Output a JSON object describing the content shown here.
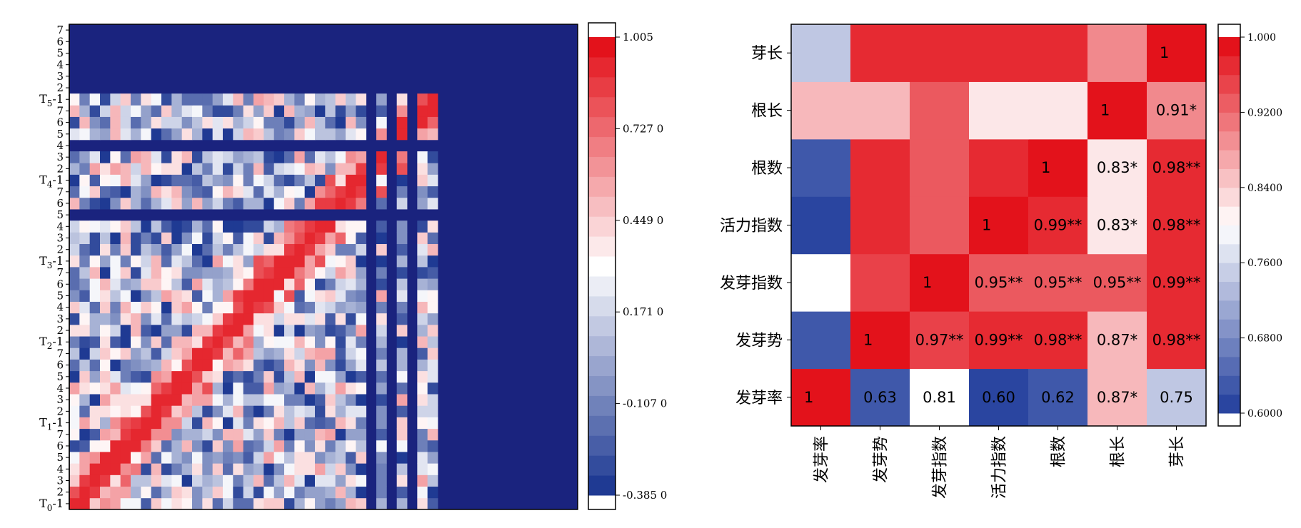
{
  "chart_data": [
    {
      "type": "heatmap",
      "title": "",
      "colorbar": {
        "ticks": [
          "1.005",
          "0.727 0",
          "0.449 0",
          "0.171 0",
          "-0.107 0",
          "-0.385 0"
        ],
        "tick_values": [
          1.005,
          0.727,
          0.449,
          0.171,
          -0.107,
          -0.385
        ],
        "range": [
          -0.385,
          1.005
        ],
        "bands": 23
      },
      "y_groups": [
        {
          "label": "T",
          "sub": "0",
          "suffix": "-1",
          "ticks": [
            "2",
            "3",
            "4",
            "5",
            "6",
            "7"
          ]
        },
        {
          "label": "T",
          "sub": "1",
          "suffix": "-1",
          "ticks": [
            "2",
            "3",
            "4",
            "5",
            "6",
            "7"
          ]
        },
        {
          "label": "T",
          "sub": "2",
          "suffix": "-1",
          "ticks": [
            "2",
            "3",
            "4",
            "5",
            "6",
            "7"
          ]
        },
        {
          "label": "T",
          "sub": "3",
          "suffix": "-1",
          "ticks": [
            "2",
            "3",
            "4",
            "5",
            "6",
            "7"
          ]
        },
        {
          "label": "T",
          "sub": "4",
          "suffix": "-1",
          "ticks": [
            "2",
            "3",
            "4",
            "5",
            "6",
            "7"
          ]
        },
        {
          "label": "T",
          "sub": "5",
          "suffix": "-1",
          "ticks": [
            "2",
            "3",
            "4",
            "5",
            "6",
            "7"
          ]
        }
      ],
      "grid_size": 42,
      "colors": {
        "low": "#1f3a93",
        "mid": "#ffffff",
        "high": "#e3121b",
        "empty": "#1a237e"
      }
    },
    {
      "type": "heatmap",
      "title": "",
      "x_categories": [
        "发芽率",
        "发芽势",
        "发芽指数",
        "活力指数",
        "根数",
        "根长",
        "芽长"
      ],
      "y_categories": [
        "发芽率",
        "发芽势",
        "发芽指数",
        "活力指数",
        "根数",
        "根长",
        "芽长"
      ],
      "cells": [
        {
          "row": "发芽率",
          "col": "发芽率",
          "value": 1,
          "label": "1"
        },
        {
          "row": "发芽率",
          "col": "发芽势",
          "value": 0.63,
          "label": "0.63"
        },
        {
          "row": "发芽率",
          "col": "发芽指数",
          "value": 0.81,
          "label": "0.81"
        },
        {
          "row": "发芽率",
          "col": "活力指数",
          "value": 0.6,
          "label": "0.60"
        },
        {
          "row": "发芽率",
          "col": "根数",
          "value": 0.62,
          "label": "0.62"
        },
        {
          "row": "发芽率",
          "col": "根长",
          "value": 0.87,
          "label": "0.87*"
        },
        {
          "row": "发芽率",
          "col": "芽长",
          "value": 0.75,
          "label": "0.75"
        },
        {
          "row": "发芽势",
          "col": "发芽率",
          "value": 0.63,
          "label": ""
        },
        {
          "row": "发芽势",
          "col": "发芽势",
          "value": 1,
          "label": "1"
        },
        {
          "row": "发芽势",
          "col": "发芽指数",
          "value": 0.97,
          "label": "0.97**"
        },
        {
          "row": "发芽势",
          "col": "活力指数",
          "value": 0.99,
          "label": "0.99**"
        },
        {
          "row": "发芽势",
          "col": "根数",
          "value": 0.98,
          "label": "0.98**"
        },
        {
          "row": "发芽势",
          "col": "根长",
          "value": 0.87,
          "label": "0.87*"
        },
        {
          "row": "发芽势",
          "col": "芽长",
          "value": 0.98,
          "label": "0.98**"
        },
        {
          "row": "发芽指数",
          "col": "发芽率",
          "value": 0.81,
          "label": ""
        },
        {
          "row": "发芽指数",
          "col": "发芽势",
          "value": 0.97,
          "label": ""
        },
        {
          "row": "发芽指数",
          "col": "发芽指数",
          "value": 1,
          "label": "1"
        },
        {
          "row": "发芽指数",
          "col": "活力指数",
          "value": 0.95,
          "label": "0.95**"
        },
        {
          "row": "发芽指数",
          "col": "根数",
          "value": 0.95,
          "label": "0.95**"
        },
        {
          "row": "发芽指数",
          "col": "根长",
          "value": 0.95,
          "label": "0.95**"
        },
        {
          "row": "发芽指数",
          "col": "芽长",
          "value": 0.99,
          "label": "0.99**"
        },
        {
          "row": "活力指数",
          "col": "发芽率",
          "value": 0.6,
          "label": ""
        },
        {
          "row": "活力指数",
          "col": "发芽势",
          "value": 0.99,
          "label": ""
        },
        {
          "row": "活力指数",
          "col": "发芽指数",
          "value": 0.95,
          "label": ""
        },
        {
          "row": "活力指数",
          "col": "活力指数",
          "value": 1,
          "label": "1"
        },
        {
          "row": "活力指数",
          "col": "根数",
          "value": 0.99,
          "label": "0.99**"
        },
        {
          "row": "活力指数",
          "col": "根长",
          "value": 0.83,
          "label": "0.83*"
        },
        {
          "row": "活力指数",
          "col": "芽长",
          "value": 0.98,
          "label": "0.98**"
        },
        {
          "row": "根数",
          "col": "发芽率",
          "value": 0.62,
          "label": ""
        },
        {
          "row": "根数",
          "col": "发芽势",
          "value": 0.98,
          "label": ""
        },
        {
          "row": "根数",
          "col": "发芽指数",
          "value": 0.95,
          "label": ""
        },
        {
          "row": "根数",
          "col": "活力指数",
          "value": 0.99,
          "label": ""
        },
        {
          "row": "根数",
          "col": "根数",
          "value": 1,
          "label": "1"
        },
        {
          "row": "根数",
          "col": "根长",
          "value": 0.83,
          "label": "0.83*"
        },
        {
          "row": "根数",
          "col": "芽长",
          "value": 0.98,
          "label": "0.98**"
        },
        {
          "row": "根长",
          "col": "发芽率",
          "value": 0.87,
          "label": ""
        },
        {
          "row": "根长",
          "col": "发芽势",
          "value": 0.87,
          "label": ""
        },
        {
          "row": "根长",
          "col": "发芽指数",
          "value": 0.95,
          "label": ""
        },
        {
          "row": "根长",
          "col": "活力指数",
          "value": 0.83,
          "label": ""
        },
        {
          "row": "根长",
          "col": "根数",
          "value": 0.83,
          "label": ""
        },
        {
          "row": "根长",
          "col": "根长",
          "value": 1,
          "label": "1"
        },
        {
          "row": "根长",
          "col": "芽长",
          "value": 0.91,
          "label": "0.91*"
        },
        {
          "row": "芽长",
          "col": "发芽率",
          "value": 0.75,
          "label": ""
        },
        {
          "row": "芽长",
          "col": "发芽势",
          "value": 0.98,
          "label": ""
        },
        {
          "row": "芽长",
          "col": "发芽指数",
          "value": 0.99,
          "label": ""
        },
        {
          "row": "芽长",
          "col": "活力指数",
          "value": 0.98,
          "label": ""
        },
        {
          "row": "芽长",
          "col": "根数",
          "value": 0.98,
          "label": ""
        },
        {
          "row": "芽长",
          "col": "根长",
          "value": 0.91,
          "label": ""
        },
        {
          "row": "芽长",
          "col": "芽长",
          "value": 1,
          "label": "1"
        }
      ],
      "colorbar": {
        "ticks": [
          "1.000",
          "0.9200",
          "0.8400",
          "0.7600",
          "0.6800",
          "0.6000"
        ],
        "tick_values": [
          1.0,
          0.92,
          0.84,
          0.76,
          0.68,
          0.6
        ],
        "range": [
          0.6,
          1.0
        ],
        "bands": 20
      },
      "colors": {
        "low": "#2a45a0",
        "mid": "#ffffff",
        "high": "#e3121b"
      }
    }
  ]
}
